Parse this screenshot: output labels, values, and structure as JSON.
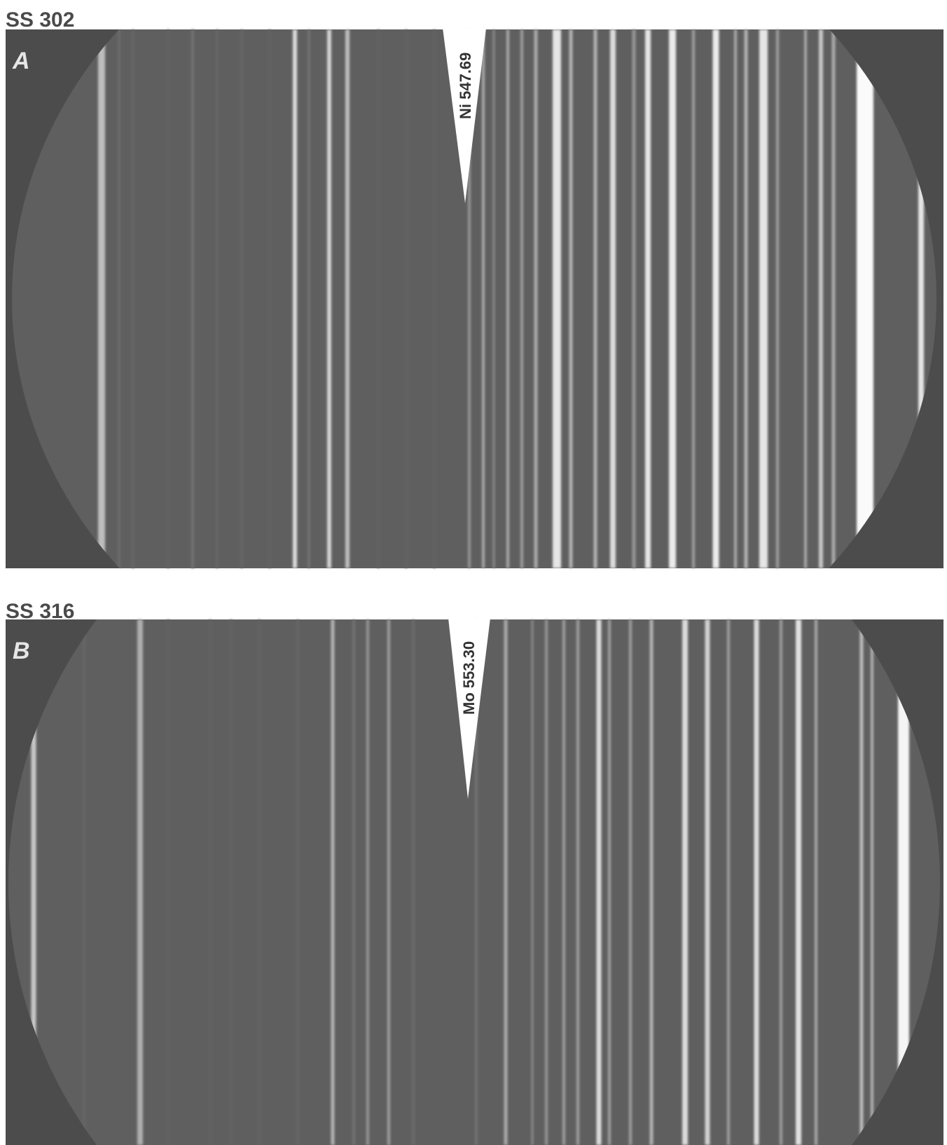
{
  "panels": [
    {
      "heading": "SS 302",
      "letter": "A",
      "marker": "Ni 547.69"
    },
    {
      "heading": "SS 316",
      "letter": "B",
      "marker": "Mo 553.30"
    }
  ]
}
